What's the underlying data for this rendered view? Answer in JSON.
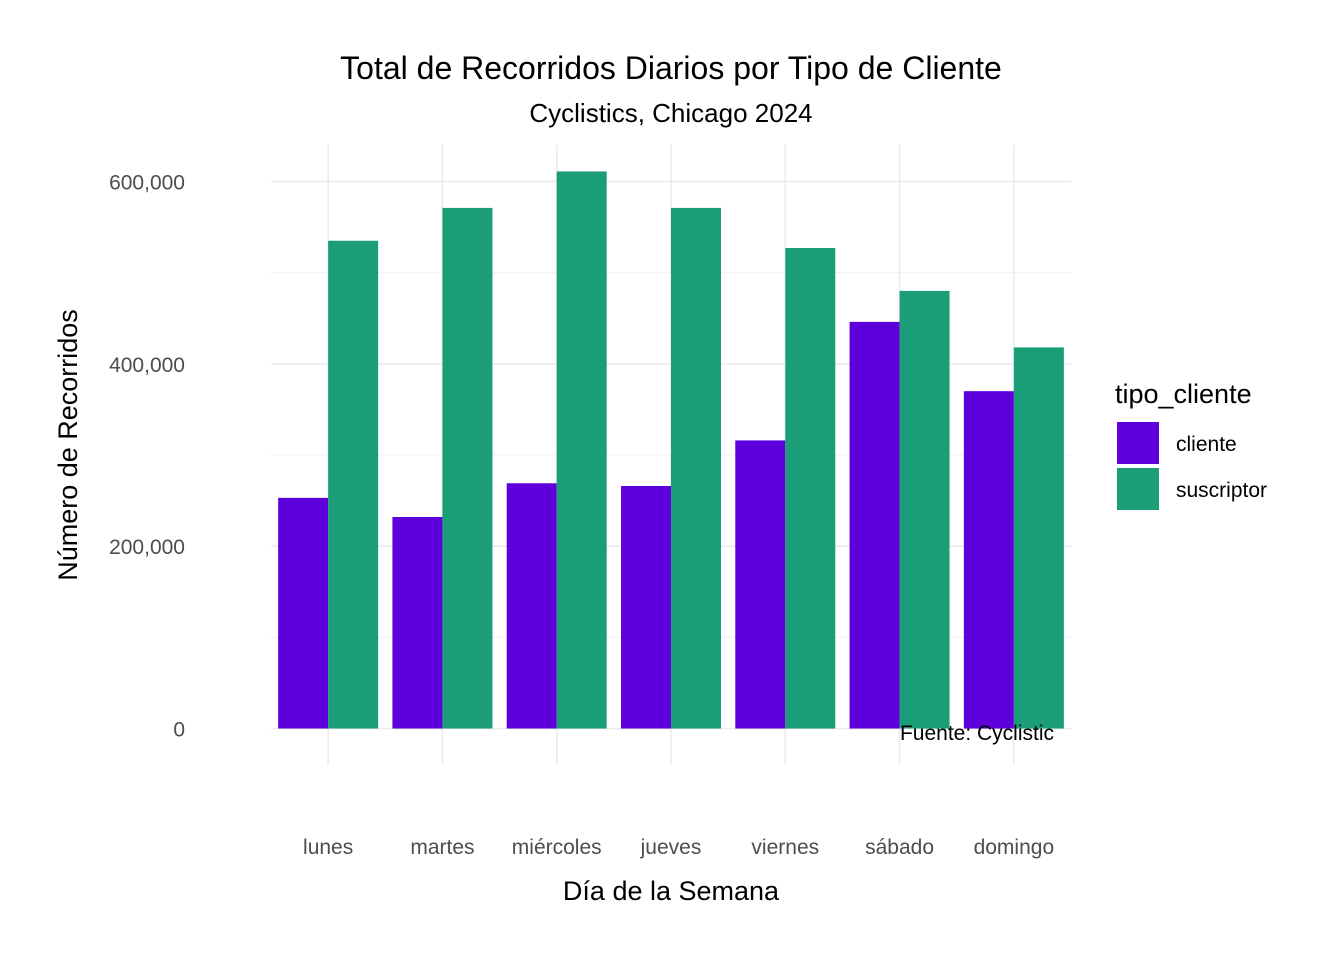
{
  "chart_data": {
    "type": "bar",
    "title": "Total de Recorridos Diarios por Tipo de Cliente",
    "subtitle": "Cyclistics, Chicago 2024",
    "xlabel": "Día de la Semana",
    "ylabel": "Número de Recorridos",
    "caption": "Fuente: Cyclistic",
    "categories": [
      "lunes",
      "martes",
      "miércoles",
      "jueves",
      "viernes",
      "sábado",
      "domingo"
    ],
    "series": [
      {
        "name": "cliente",
        "color": "#5E00DC",
        "values": [
          253000,
          232000,
          269000,
          266000,
          316000,
          446000,
          370000
        ]
      },
      {
        "name": "suscriptor",
        "color": "#1B9E77",
        "values": [
          535000,
          571000,
          611000,
          571000,
          527000,
          480000,
          418000
        ]
      }
    ],
    "ylim": [
      -40000,
      640000
    ],
    "yticks": [
      0,
      200000,
      400000,
      600000
    ],
    "ytick_labels": [
      "0",
      "200,000",
      "400,000",
      "600,000"
    ],
    "grid": true,
    "legend": {
      "title": "tipo_cliente",
      "position": "right",
      "items": [
        "cliente",
        "suscriptor"
      ]
    }
  }
}
